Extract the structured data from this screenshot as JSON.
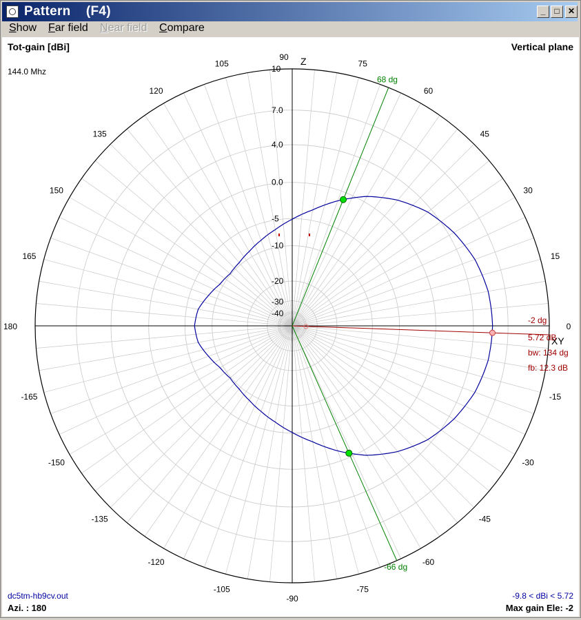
{
  "window": {
    "title": "Pattern    (F4)",
    "buttons": {
      "minimize": "_",
      "maximize": "□",
      "close": "✕"
    }
  },
  "menu": [
    {
      "label": "Show",
      "hotkey": "S",
      "rest": "how",
      "enabled": true
    },
    {
      "label": "Far field",
      "hotkey": "F",
      "rest": "ar field",
      "enabled": true
    },
    {
      "label": "Near field",
      "hotkey": "N",
      "rest": "ear field",
      "enabled": false
    },
    {
      "label": "Compare",
      "hotkey": "C",
      "rest": "ompare",
      "enabled": true
    }
  ],
  "plot": {
    "gain_label": "Tot-gain [dBi]",
    "plane_label": "Vertical plane",
    "frequency": "144.0 Mhz",
    "axis_z": "Z",
    "axis_xy": "XY",
    "filename": "dc5tm-hb9cv.out",
    "azimuth": "Azi. : 180",
    "gain_range": "-9.8 < dBi < 5.72",
    "max_gain_ele": "Max gain Ele: -2",
    "angle_labels": [
      {
        "deg": 90,
        "text": "90"
      },
      {
        "deg": 75,
        "text": "75"
      },
      {
        "deg": 60,
        "text": "60"
      },
      {
        "deg": 45,
        "text": "45"
      },
      {
        "deg": 30,
        "text": "30"
      },
      {
        "deg": 15,
        "text": "15"
      },
      {
        "deg": 0,
        "text": "0"
      },
      {
        "deg": -15,
        "text": "-15"
      },
      {
        "deg": -30,
        "text": "-30"
      },
      {
        "deg": -45,
        "text": "-45"
      },
      {
        "deg": -60,
        "text": "-60"
      },
      {
        "deg": -75,
        "text": "-75"
      },
      {
        "deg": -90,
        "text": "-90"
      },
      {
        "deg": 105,
        "text": "105"
      },
      {
        "deg": 120,
        "text": "120"
      },
      {
        "deg": 135,
        "text": "135"
      },
      {
        "deg": 150,
        "text": "150"
      },
      {
        "deg": 165,
        "text": "165"
      },
      {
        "deg": 180,
        "text": "180"
      },
      {
        "deg": -105,
        "text": "-105"
      },
      {
        "deg": -120,
        "text": "-120"
      },
      {
        "deg": -135,
        "text": "-135"
      },
      {
        "deg": -150,
        "text": "-150"
      },
      {
        "deg": -165,
        "text": "-165"
      }
    ],
    "db_labels": [
      {
        "db": 10,
        "text": "10"
      },
      {
        "db": 7,
        "text": "7.0"
      },
      {
        "db": 4,
        "text": "4.0"
      },
      {
        "db": 0,
        "text": "0.0"
      },
      {
        "db": -5,
        "text": "-5"
      },
      {
        "db": -10,
        "text": "-10"
      },
      {
        "db": -20,
        "text": "-20"
      },
      {
        "db": -30,
        "text": "-30"
      },
      {
        "db": -40,
        "text": "-40"
      }
    ],
    "beam_lines": [
      {
        "name": "upper-beamwidth",
        "deg": 68,
        "text": "68 dg",
        "color": "#008000"
      },
      {
        "name": "lower-beamwidth",
        "deg": -66,
        "text": "-66 dg",
        "color": "#008000"
      }
    ],
    "max_gain": {
      "deg": -2,
      "text": "-2 dg",
      "gain_text": "5.72 dB",
      "bw_text": "bw: 134 dg",
      "fb_text": "fb: 12.3 dB",
      "color": "#a00000"
    },
    "pattern": {
      "color": "#00009c",
      "points": [
        [
          0,
          5.72
        ],
        [
          10,
          5.6
        ],
        [
          20,
          5.2
        ],
        [
          30,
          4.5
        ],
        [
          40,
          3.6
        ],
        [
          50,
          2.3
        ],
        [
          60,
          0.7
        ],
        [
          70,
          -1.3
        ],
        [
          80,
          -3.4
        ],
        [
          90,
          -5.1
        ],
        [
          100,
          -6.6
        ],
        [
          110,
          -7.8
        ],
        [
          120,
          -8.8
        ],
        [
          130,
          -9.5
        ],
        [
          140,
          -9.8
        ],
        [
          150,
          -9.3
        ],
        [
          160,
          -8.2
        ],
        [
          170,
          -7.0
        ],
        [
          180,
          -6.6
        ],
        [
          190,
          -7.0
        ],
        [
          200,
          -8.2
        ],
        [
          210,
          -9.3
        ],
        [
          220,
          -9.8
        ],
        [
          230,
          -9.5
        ],
        [
          240,
          -8.8
        ],
        [
          250,
          -7.8
        ],
        [
          260,
          -6.6
        ],
        [
          270,
          -5.1
        ],
        [
          280,
          -3.4
        ],
        [
          290,
          -1.3
        ],
        [
          300,
          0.7
        ],
        [
          310,
          2.3
        ],
        [
          320,
          3.6
        ],
        [
          330,
          4.5
        ],
        [
          340,
          5.2
        ],
        [
          350,
          5.6
        ],
        [
          360,
          5.72
        ]
      ]
    },
    "colors": {
      "grid": "#c8c8c8",
      "axis": "#000000",
      "label": "#000000"
    }
  }
}
